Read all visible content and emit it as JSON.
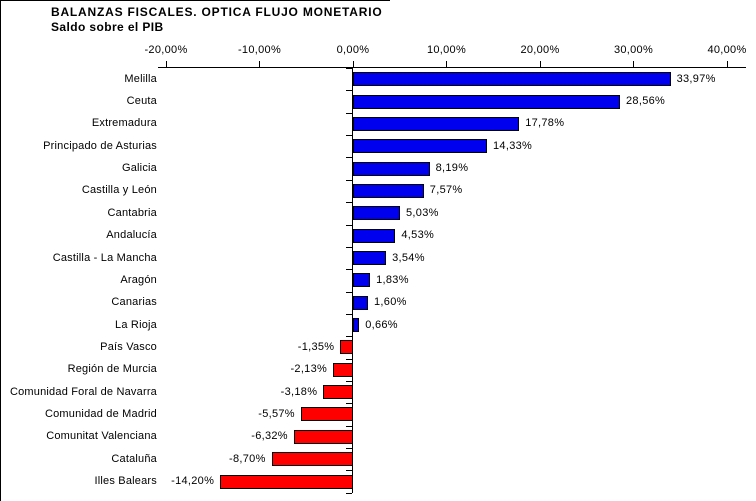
{
  "title": "BALANZAS FISCALES. OPTICA FLUJO MONETARIO",
  "subtitle": "Saldo sobre el PIB",
  "chart_data": {
    "type": "bar",
    "orientation": "horizontal",
    "title": "BALANZAS FISCALES. OPTICA FLUJO MONETARIO",
    "subtitle": "Saldo sobre el PIB",
    "categories": [
      "Melilla",
      "Ceuta",
      "Extremadura",
      "Principado de Asturias",
      "Galicia",
      "Castilla y León",
      "Cantabria",
      "Andalucía",
      "Castilla - La Mancha",
      "Aragón",
      "Canarias",
      "La Rioja",
      "País Vasco",
      "Región de Murcia",
      "Comunidad Foral de Navarra",
      "Comunidad de Madrid",
      "Comunitat Valenciana",
      "Cataluña",
      "Illes Balears"
    ],
    "values": [
      33.97,
      28.56,
      17.78,
      14.33,
      8.19,
      7.57,
      5.03,
      4.53,
      3.54,
      1.83,
      1.6,
      0.66,
      -1.35,
      -2.13,
      -3.18,
      -5.57,
      -6.32,
      -8.7,
      -14.2
    ],
    "value_labels": [
      "33,97%",
      "28,56%",
      "17,78%",
      "14,33%",
      "8,19%",
      "7,57%",
      "5,03%",
      "4,53%",
      "3,54%",
      "1,83%",
      "1,60%",
      "0,66%",
      "-1,35%",
      "-2,13%",
      "-3,18%",
      "-5,57%",
      "-6,32%",
      "-8,70%",
      "-14,20%"
    ],
    "x_tick_values": [
      -20,
      -10,
      0,
      10,
      20,
      30,
      40
    ],
    "x_tick_labels": [
      "-20,00%",
      "-10,00%",
      "0,00%",
      "10,00%",
      "20,00%",
      "30,00%",
      "40,00%"
    ],
    "xlim": [
      -20,
      40
    ],
    "grid": false,
    "legend": "none",
    "colors": {
      "positive": "#0000EE",
      "negative": "#FF0000",
      "bar_border": "#000000",
      "axis": "#000000",
      "text": "#000000",
      "background": "#FFFFFF"
    }
  }
}
